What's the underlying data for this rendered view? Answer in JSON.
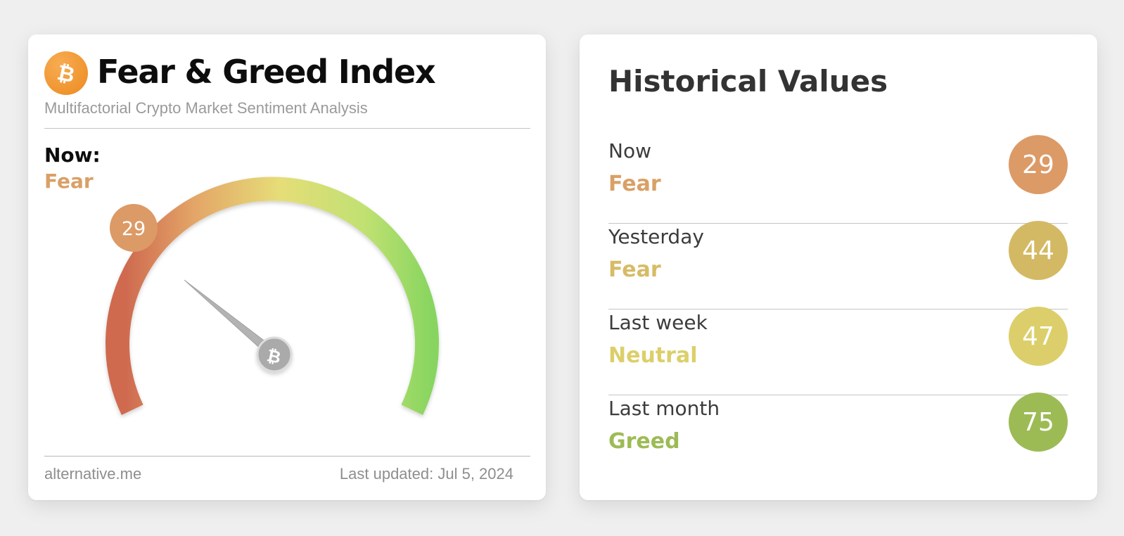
{
  "widget": {
    "title": "Fear & Greed Index",
    "subtitle": "Multifactorial Crypto Market Sentiment Analysis",
    "now_label": "Now:",
    "now_classification": "Fear",
    "now_color": "#d9a066",
    "value": 29,
    "value_label": "29",
    "badge_color": "#dc9a66",
    "gauge_min": 0,
    "gauge_max": 100,
    "logo_icon": "bitcoin-icon",
    "footer_source": "alternative.me",
    "footer_updated": "Last updated: Jul 5, 2024"
  },
  "historical": {
    "title": "Historical Values",
    "rows": [
      {
        "period": "Now",
        "classification": "Fear",
        "value": "29",
        "text_color": "#d9a066",
        "badge_color": "#dc9a66"
      },
      {
        "period": "Yesterday",
        "classification": "Fear",
        "value": "44",
        "text_color": "#d7bb66",
        "badge_color": "#d4b964"
      },
      {
        "period": "Last week",
        "classification": "Neutral",
        "value": "47",
        "text_color": "#dccf6a",
        "badge_color": "#dccf6b"
      },
      {
        "period": "Last month",
        "classification": "Greed",
        "value": "75",
        "text_color": "#9dbb55",
        "badge_color": "#9dbb55"
      }
    ]
  }
}
